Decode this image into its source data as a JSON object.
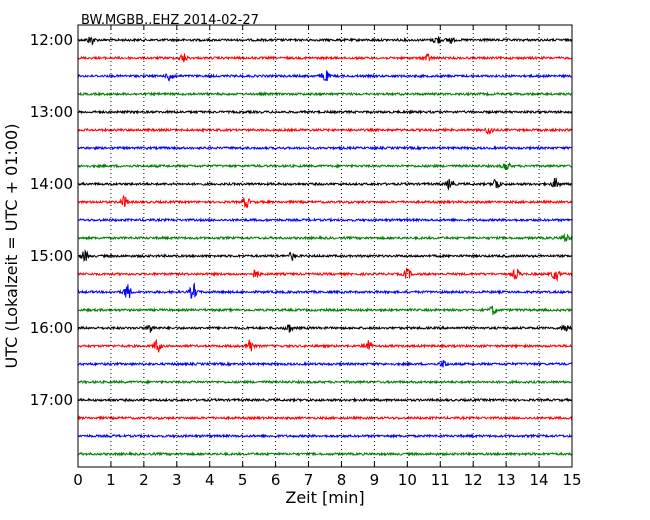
{
  "chart_data": {
    "type": "line",
    "title": "BW.MGBB..EHZ 2014-02-27",
    "xlabel": "Zeit  [min]",
    "ylabel": "UTC (Lokalzeit = UTC + 01:00)",
    "xlim": [
      0,
      15
    ],
    "x_ticks": [
      "0",
      "1",
      "2",
      "3",
      "4",
      "5",
      "6",
      "7",
      "8",
      "9",
      "10",
      "11",
      "12",
      "13",
      "14",
      "15"
    ],
    "y_ticks": [
      "12:00",
      "13:00",
      "14:00",
      "15:00",
      "16:00",
      "17:00"
    ],
    "grid": "vertical dotted lines at each minute",
    "colors": [
      "#000000",
      "#ff0000",
      "#0000ff",
      "#008000"
    ],
    "series": [
      {
        "start": "12:00",
        "color": "#000000",
        "events": [
          [
            0.4,
            0.5
          ],
          [
            10.9,
            0.5
          ],
          [
            11.3,
            0.4
          ]
        ]
      },
      {
        "start": "12:15",
        "color": "#ff0000",
        "events": [
          [
            3.2,
            0.5
          ],
          [
            10.6,
            0.4
          ]
        ]
      },
      {
        "start": "12:30",
        "color": "#0000ff",
        "events": [
          [
            2.8,
            0.6
          ],
          [
            7.5,
            0.7
          ]
        ]
      },
      {
        "start": "12:45",
        "color": "#008000",
        "events": []
      },
      {
        "start": "13:00",
        "color": "#000000",
        "events": []
      },
      {
        "start": "13:15",
        "color": "#ff0000",
        "events": [
          [
            12.5,
            0.5
          ]
        ]
      },
      {
        "start": "13:30",
        "color": "#0000ff",
        "events": []
      },
      {
        "start": "13:45",
        "color": "#008000",
        "events": [
          [
            13.0,
            0.5
          ]
        ]
      },
      {
        "start": "14:00",
        "color": "#000000",
        "events": [
          [
            11.3,
            0.6
          ],
          [
            12.7,
            0.7
          ],
          [
            14.5,
            0.6
          ]
        ]
      },
      {
        "start": "14:15",
        "color": "#ff0000",
        "events": [
          [
            1.4,
            0.6
          ],
          [
            5.1,
            0.6
          ]
        ]
      },
      {
        "start": "14:30",
        "color": "#0000ff",
        "events": []
      },
      {
        "start": "14:45",
        "color": "#008000",
        "events": [
          [
            14.8,
            0.5
          ]
        ]
      },
      {
        "start": "15:00",
        "color": "#000000",
        "events": [
          [
            0.2,
            0.6
          ],
          [
            6.5,
            0.4
          ]
        ]
      },
      {
        "start": "15:15",
        "color": "#ff0000",
        "events": [
          [
            5.4,
            0.5
          ],
          [
            10.0,
            0.6
          ],
          [
            13.3,
            0.6
          ],
          [
            14.5,
            0.7
          ]
        ]
      },
      {
        "start": "15:30",
        "color": "#0000ff",
        "events": [
          [
            1.5,
            0.9
          ],
          [
            3.5,
            0.9
          ]
        ]
      },
      {
        "start": "15:45",
        "color": "#008000",
        "events": [
          [
            12.6,
            0.5
          ]
        ]
      },
      {
        "start": "16:00",
        "color": "#000000",
        "events": [
          [
            2.2,
            0.5
          ],
          [
            6.4,
            0.5
          ],
          [
            14.8,
            0.5
          ]
        ]
      },
      {
        "start": "16:15",
        "color": "#ff0000",
        "events": [
          [
            2.4,
            0.8
          ],
          [
            5.2,
            0.9
          ],
          [
            8.8,
            0.8
          ]
        ]
      },
      {
        "start": "16:30",
        "color": "#0000ff",
        "events": [
          [
            11.1,
            0.4
          ]
        ]
      },
      {
        "start": "16:45",
        "color": "#008000",
        "events": []
      },
      {
        "start": "17:00",
        "color": "#000000",
        "events": []
      },
      {
        "start": "17:15",
        "color": "#ff0000",
        "events": []
      },
      {
        "start": "17:30",
        "color": "#0000ff",
        "events": []
      },
      {
        "start": "17:45",
        "color": "#008000",
        "events": []
      }
    ]
  }
}
